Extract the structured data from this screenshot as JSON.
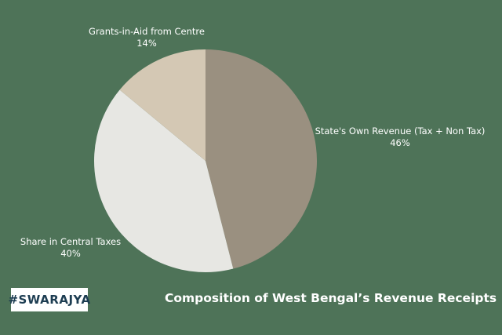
{
  "brand": {
    "logo_text": "#SWARAJYA"
  },
  "chart_data": {
    "type": "pie",
    "title": "Composition of West Bengal’s Revenue Receipts",
    "slices": [
      {
        "label": "State's Own Revenue (Tax + Non Tax)",
        "value": 46,
        "value_label": "46%",
        "color": "#9a9080"
      },
      {
        "label": "Share in Central Taxes",
        "value": 40,
        "value_label": "40%",
        "color": "#e7e7e3"
      },
      {
        "label": "Grants-in-Aid from Centre",
        "value": 14,
        "value_label": "14%",
        "color": "#d4c8b4"
      }
    ]
  }
}
